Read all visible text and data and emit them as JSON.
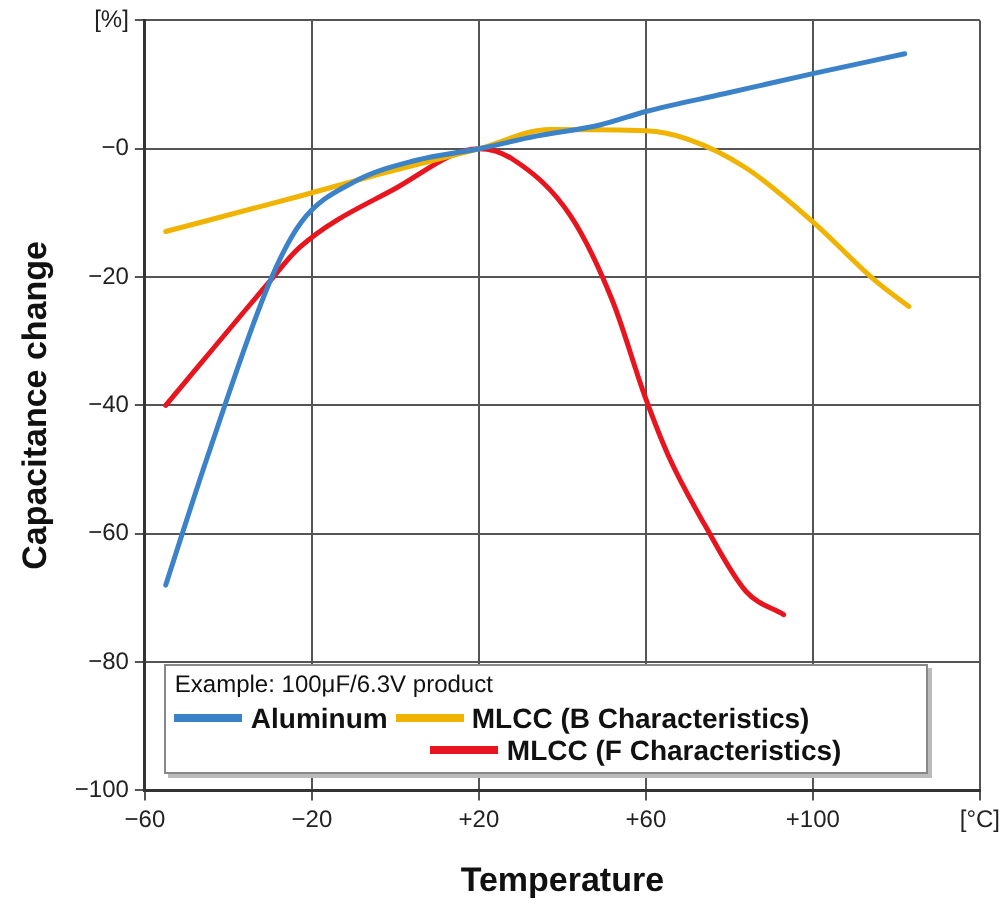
{
  "chart_data": {
    "type": "line",
    "xlabel": "Temperature",
    "ylabel": "Capacitance change",
    "legend_title": "Example: 100μF/6.3V product",
    "xlim": [
      -60,
      140
    ],
    "ylim": [
      -100,
      20
    ],
    "xticks": [
      {
        "value": -60,
        "label": "−60"
      },
      {
        "value": -20,
        "label": "−20"
      },
      {
        "value": 20,
        "label": "+20"
      },
      {
        "value": 60,
        "label": "+60"
      },
      {
        "value": 100,
        "label": "+100"
      },
      {
        "value": 140,
        "label": "[°C]"
      }
    ],
    "yticks": [
      {
        "value": -100,
        "label": "−100"
      },
      {
        "value": -80,
        "label": "−80"
      },
      {
        "value": -60,
        "label": "−60"
      },
      {
        "value": -40,
        "label": "−40"
      },
      {
        "value": -20,
        "label": "−20"
      },
      {
        "value": 0,
        "label": "−0"
      },
      {
        "value": 20,
        "label": "[%]"
      }
    ],
    "grid": true,
    "legend": "bottom left",
    "marker": "none",
    "line_style": "solid",
    "series": [
      {
        "name": "Aluminum",
        "color": "#3c82c8",
        "x": [
          -55,
          -45,
          -30,
          -22.5,
          -10,
          5,
          20,
          34,
          49,
          60,
          79,
          100,
          122
        ],
        "values": [
          -68,
          -48,
          -20.6,
          -11.4,
          -5.2,
          -1.8,
          0,
          2,
          3.7,
          5.8,
          8.6,
          11.7,
          14.8
        ]
      },
      {
        "name": "MLCC (B Characteristics)",
        "color": "#f0b400",
        "x": [
          -55,
          -23,
          -4,
          20,
          37,
          60,
          70,
          84,
          100,
          115,
          123
        ],
        "values": [
          -12.9,
          -7.4,
          -4,
          0,
          3,
          2.8,
          1.5,
          -3,
          -11.4,
          -20.6,
          -24.6
        ]
      },
      {
        "name": "MLCC (F Characteristics)",
        "color": "#e8141e",
        "x": [
          -55,
          -30,
          -23,
          0,
          20,
          28,
          42,
          52,
          60,
          65.5,
          74,
          84,
          93
        ],
        "values": [
          -40,
          -20.6,
          -15.4,
          -6.2,
          0,
          -1.6,
          -10.5,
          -23.7,
          -39,
          -48,
          -58.5,
          -69,
          -72.6
        ]
      }
    ]
  }
}
